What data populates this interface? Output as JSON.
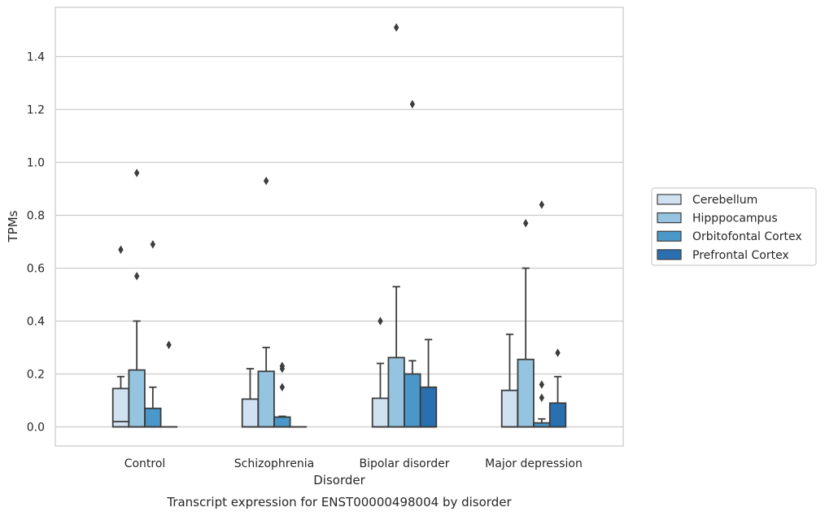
{
  "chart_data": {
    "type": "boxplot",
    "title": "",
    "xlabel": "Disorder",
    "ylabel": "TPMs",
    "caption": "Transcript expression for ENST00000498004 by disorder",
    "ylim": [
      -0.075,
      1.6
    ],
    "yticks": [
      "0.0",
      "0.2",
      "0.4",
      "0.6",
      "0.8",
      "1.0",
      "1.2",
      "1.4"
    ],
    "grid": true,
    "legend_position": "right",
    "categories": [
      "Control",
      "Schizophrenia",
      "Bipolar disorder",
      "Major depression"
    ],
    "series": [
      {
        "name": "Cerebellum",
        "color": "#d0e1f2",
        "boxes": [
          {
            "q1": 0.0,
            "median": 0.02,
            "q3": 0.145,
            "whisker_low": 0.0,
            "whisker_high": 0.19,
            "outliers": [
              0.67
            ]
          },
          {
            "q1": 0.0,
            "median": 0.0,
            "q3": 0.105,
            "whisker_low": 0.0,
            "whisker_high": 0.22,
            "outliers": []
          },
          {
            "q1": 0.0,
            "median": 0.0,
            "q3": 0.108,
            "whisker_low": 0.0,
            "whisker_high": 0.24,
            "outliers": [
              0.4
            ]
          },
          {
            "q1": 0.0,
            "median": 0.0,
            "q3": 0.138,
            "whisker_low": 0.0,
            "whisker_high": 0.35,
            "outliers": []
          }
        ]
      },
      {
        "name": "Hipppocampus",
        "color": "#94c4df",
        "boxes": [
          {
            "q1": 0.0,
            "median": 0.0,
            "q3": 0.215,
            "whisker_low": 0.0,
            "whisker_high": 0.4,
            "outliers": [
              0.57,
              0.96
            ]
          },
          {
            "q1": 0.0,
            "median": 0.0,
            "q3": 0.21,
            "whisker_low": 0.0,
            "whisker_high": 0.3,
            "outliers": [
              0.93
            ]
          },
          {
            "q1": 0.0,
            "median": 0.0,
            "q3": 0.262,
            "whisker_low": 0.0,
            "whisker_high": 0.53,
            "outliers": [
              1.51
            ]
          },
          {
            "q1": 0.0,
            "median": 0.0,
            "q3": 0.255,
            "whisker_low": 0.0,
            "whisker_high": 0.6,
            "outliers": [
              0.77
            ]
          }
        ]
      },
      {
        "name": "Orbitofontal Cortex",
        "color": "#4a98c9",
        "boxes": [
          {
            "q1": 0.0,
            "median": 0.0,
            "q3": 0.07,
            "whisker_low": 0.0,
            "whisker_high": 0.15,
            "outliers": [
              0.69
            ]
          },
          {
            "q1": 0.0,
            "median": 0.0,
            "q3": 0.037,
            "whisker_low": 0.0,
            "whisker_high": 0.04,
            "outliers": [
              0.15,
              0.22,
              0.23
            ]
          },
          {
            "q1": 0.0,
            "median": 0.0,
            "q3": 0.2,
            "whisker_low": 0.0,
            "whisker_high": 0.25,
            "outliers": [
              1.22
            ]
          },
          {
            "q1": 0.0,
            "median": 0.0,
            "q3": 0.015,
            "whisker_low": 0.0,
            "whisker_high": 0.03,
            "outliers": [
              0.11,
              0.16,
              0.84
            ]
          }
        ]
      },
      {
        "name": "Prefrontal Cortex",
        "color": "#2a6fb0",
        "boxes": [
          {
            "q1": 0.0,
            "median": 0.0,
            "q3": 0.0,
            "whisker_low": 0.0,
            "whisker_high": 0.0,
            "outliers": [
              0.31
            ]
          },
          {
            "q1": 0.0,
            "median": 0.0,
            "q3": 0.0,
            "whisker_low": 0.0,
            "whisker_high": 0.0,
            "outliers": []
          },
          {
            "q1": 0.0,
            "median": 0.0,
            "q3": 0.15,
            "whisker_low": 0.0,
            "whisker_high": 0.33,
            "outliers": []
          },
          {
            "q1": 0.0,
            "median": 0.0,
            "q3": 0.09,
            "whisker_low": 0.0,
            "whisker_high": 0.19,
            "outliers": [
              0.28
            ]
          }
        ]
      }
    ]
  }
}
